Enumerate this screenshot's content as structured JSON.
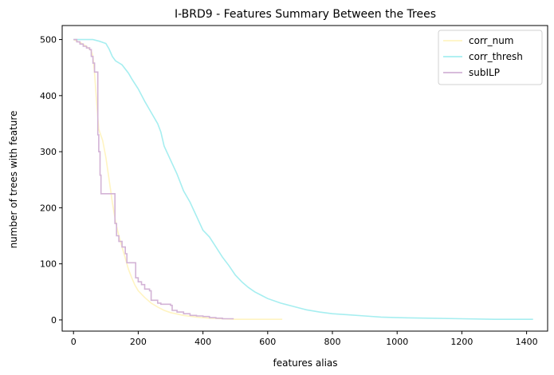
{
  "chart_data": {
    "type": "line",
    "title": "I-BRD9 - Features Summary Between the Trees",
    "xlabel": "features alias",
    "ylabel": "number of trees with feature",
    "xlim": [
      -35,
      1465
    ],
    "ylim": [
      -20,
      525
    ],
    "xticks": [
      0,
      200,
      400,
      600,
      800,
      1000,
      1200,
      1400
    ],
    "yticks": [
      0,
      100,
      200,
      300,
      400,
      500
    ],
    "grid": false,
    "legend": "top-right",
    "series": [
      {
        "name": "corr_num",
        "color": "#fff4c2",
        "step": false,
        "points": [
          [
            0,
            500
          ],
          [
            20,
            495
          ],
          [
            40,
            488
          ],
          [
            55,
            480
          ],
          [
            60,
            470
          ],
          [
            65,
            440
          ],
          [
            70,
            400
          ],
          [
            78,
            340
          ],
          [
            90,
            320
          ],
          [
            100,
            290
          ],
          [
            110,
            250
          ],
          [
            120,
            210
          ],
          [
            130,
            175
          ],
          [
            140,
            150
          ],
          [
            150,
            130
          ],
          [
            160,
            110
          ],
          [
            170,
            90
          ],
          [
            180,
            75
          ],
          [
            190,
            62
          ],
          [
            200,
            52
          ],
          [
            220,
            40
          ],
          [
            240,
            30
          ],
          [
            260,
            23
          ],
          [
            280,
            17
          ],
          [
            300,
            13
          ],
          [
            340,
            8
          ],
          [
            380,
            5
          ],
          [
            420,
            3
          ],
          [
            460,
            2
          ],
          [
            500,
            1
          ],
          [
            560,
            1
          ],
          [
            645,
            1
          ]
        ]
      },
      {
        "name": "corr_thresh",
        "color": "#a6eef0",
        "step": false,
        "points": [
          [
            0,
            500
          ],
          [
            40,
            500
          ],
          [
            60,
            500
          ],
          [
            80,
            497
          ],
          [
            100,
            493
          ],
          [
            110,
            483
          ],
          [
            120,
            470
          ],
          [
            130,
            462
          ],
          [
            150,
            455
          ],
          [
            170,
            440
          ],
          [
            180,
            430
          ],
          [
            200,
            412
          ],
          [
            220,
            390
          ],
          [
            240,
            370
          ],
          [
            260,
            350
          ],
          [
            270,
            335
          ],
          [
            280,
            310
          ],
          [
            300,
            285
          ],
          [
            320,
            260
          ],
          [
            340,
            230
          ],
          [
            360,
            210
          ],
          [
            380,
            185
          ],
          [
            400,
            160
          ],
          [
            420,
            148
          ],
          [
            440,
            130
          ],
          [
            460,
            112
          ],
          [
            480,
            97
          ],
          [
            500,
            80
          ],
          [
            520,
            68
          ],
          [
            540,
            58
          ],
          [
            560,
            50
          ],
          [
            580,
            44
          ],
          [
            600,
            38
          ],
          [
            640,
            30
          ],
          [
            680,
            24
          ],
          [
            720,
            18
          ],
          [
            760,
            14
          ],
          [
            800,
            11
          ],
          [
            850,
            9
          ],
          [
            900,
            7
          ],
          [
            950,
            5
          ],
          [
            1000,
            4
          ],
          [
            1100,
            3
          ],
          [
            1200,
            2
          ],
          [
            1300,
            1
          ],
          [
            1420,
            1
          ]
        ]
      },
      {
        "name": "subILP",
        "color": "#d3b3d6",
        "step": true,
        "points": [
          [
            0,
            500
          ],
          [
            10,
            496
          ],
          [
            20,
            492
          ],
          [
            30,
            488
          ],
          [
            40,
            485
          ],
          [
            50,
            482
          ],
          [
            55,
            470
          ],
          [
            60,
            458
          ],
          [
            65,
            442
          ],
          [
            72,
            442
          ],
          [
            75,
            330
          ],
          [
            78,
            300
          ],
          [
            82,
            258
          ],
          [
            85,
            225
          ],
          [
            125,
            225
          ],
          [
            128,
            172
          ],
          [
            133,
            150
          ],
          [
            140,
            140
          ],
          [
            150,
            130
          ],
          [
            160,
            118
          ],
          [
            165,
            102
          ],
          [
            190,
            102
          ],
          [
            192,
            75
          ],
          [
            200,
            68
          ],
          [
            210,
            63
          ],
          [
            220,
            55
          ],
          [
            235,
            52
          ],
          [
            240,
            35
          ],
          [
            260,
            30
          ],
          [
            270,
            28
          ],
          [
            300,
            26
          ],
          [
            305,
            17
          ],
          [
            320,
            14
          ],
          [
            340,
            11
          ],
          [
            360,
            8
          ],
          [
            380,
            7
          ],
          [
            400,
            6
          ],
          [
            420,
            4
          ],
          [
            440,
            3
          ],
          [
            460,
            2
          ],
          [
            480,
            2
          ],
          [
            495,
            2
          ]
        ]
      }
    ]
  }
}
